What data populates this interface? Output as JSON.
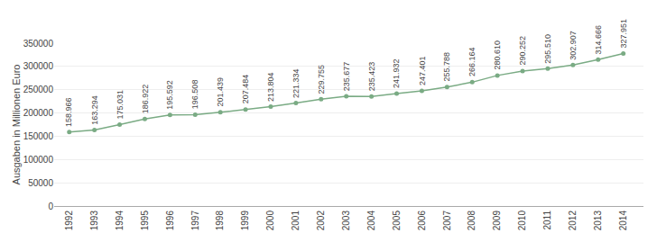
{
  "chart_data": {
    "type": "line",
    "x": [
      1992,
      1993,
      1994,
      1995,
      1996,
      1997,
      1998,
      1999,
      2000,
      2001,
      2002,
      2003,
      2004,
      2005,
      2006,
      2007,
      2008,
      2009,
      2010,
      2011,
      2012,
      2013,
      2014
    ],
    "values": [
      158966,
      163294,
      175031,
      186922,
      195592,
      196508,
      201439,
      207484,
      213804,
      221334,
      229755,
      235677,
      235423,
      241932,
      247401,
      255788,
      266164,
      280610,
      290252,
      295510,
      302907,
      314666,
      327951
    ],
    "value_labels": [
      "158.966",
      "163.294",
      "175.031",
      "186.922",
      "195.592",
      "196.508",
      "201.439",
      "207.484",
      "213.804",
      "221.334",
      "229.755",
      "235.677",
      "235.423",
      "241.932",
      "247.401",
      "255.788",
      "266.164",
      "280.610",
      "290.252",
      "295.510",
      "302.907",
      "314.666",
      "327.951"
    ],
    "color": "#7aab84",
    "marker": "circle",
    "ylabel": "Ausgaben in Millionen Euro",
    "xlim": [
      1991.4,
      2014.8
    ],
    "xticks": [
      1992,
      1993,
      1994,
      1995,
      1996,
      1997,
      1998,
      1999,
      2000,
      2001,
      2002,
      2003,
      2004,
      2005,
      2006,
      2007,
      2008,
      2009,
      2010,
      2011,
      2012,
      2013,
      2014
    ],
    "ylim": [
      0,
      350000
    ],
    "yticks": [
      0,
      50000,
      100000,
      150000,
      200000,
      250000,
      300000,
      350000
    ],
    "grid": true,
    "data_labels": true
  }
}
